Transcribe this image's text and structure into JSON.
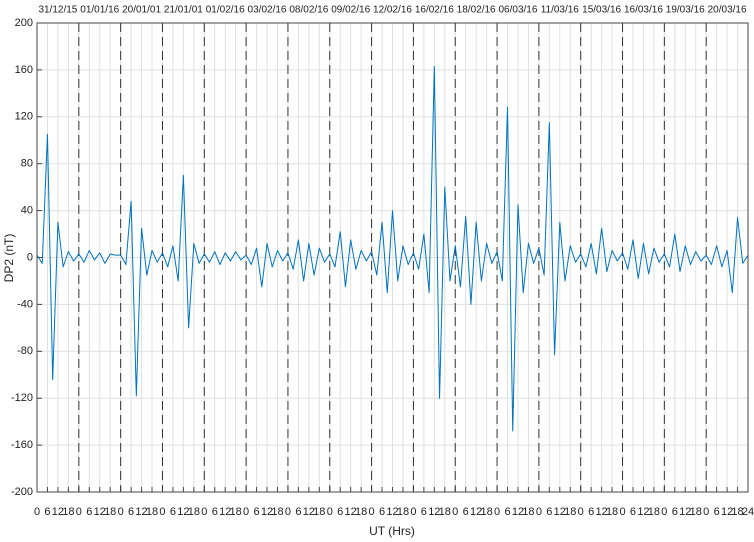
{
  "chart_data": {
    "type": "line",
    "day_labels": [
      "31/12/15",
      "01/01/16",
      "20/01/01",
      "21/01/01",
      "01/02/16",
      "03/02/16",
      "08/02/16",
      "09/02/16",
      "12/02/16",
      "16/02/16",
      "18/02/16",
      "06/03/16",
      "11/03/16",
      "15/03/16",
      "16/03/16",
      "19/03/16",
      "20/03/16"
    ],
    "xlabel": "UT (Hrs)",
    "ylabel": "DP2 (nT)",
    "xlim": [
      0,
      408
    ],
    "ylim": [
      -200,
      200
    ],
    "yticks": [
      -200,
      -160,
      -120,
      -80,
      -40,
      0,
      40,
      80,
      120,
      160,
      200
    ],
    "xticks": [
      0,
      6,
      12,
      18,
      {
        "value": 24,
        "label": "0"
      },
      {
        "value": 30,
        "label": "6"
      },
      {
        "value": 36,
        "label": "12"
      },
      {
        "value": 42,
        "label": "18"
      },
      {
        "value": 48,
        "label": "0"
      },
      {
        "value": 54,
        "label": "6"
      },
      {
        "value": 60,
        "label": "12"
      },
      {
        "value": 66,
        "label": "18"
      },
      {
        "value": 72,
        "label": "0"
      },
      {
        "value": 78,
        "label": "6"
      },
      {
        "value": 84,
        "label": "12"
      },
      {
        "value": 90,
        "label": "18"
      },
      {
        "value": 96,
        "label": "0"
      },
      {
        "value": 102,
        "label": "6"
      },
      {
        "value": 108,
        "label": "12"
      },
      {
        "value": 114,
        "label": "18"
      },
      {
        "value": 120,
        "label": "0"
      },
      {
        "value": 126,
        "label": "6"
      },
      {
        "value": 132,
        "label": "12"
      },
      {
        "value": 138,
        "label": "18"
      },
      {
        "value": 144,
        "label": "0"
      },
      {
        "value": 150,
        "label": "6"
      },
      {
        "value": 156,
        "label": "12"
      },
      {
        "value": 162,
        "label": "18"
      },
      {
        "value": 168,
        "label": "0"
      },
      {
        "value": 174,
        "label": "6"
      },
      {
        "value": 180,
        "label": "12"
      },
      {
        "value": 186,
        "label": "18"
      },
      {
        "value": 192,
        "label": "0"
      },
      {
        "value": 198,
        "label": "6"
      },
      {
        "value": 204,
        "label": "12"
      },
      {
        "value": 210,
        "label": "18"
      },
      {
        "value": 216,
        "label": "0"
      },
      {
        "value": 222,
        "label": "6"
      },
      {
        "value": 228,
        "label": "12"
      },
      {
        "value": 234,
        "label": "18"
      },
      {
        "value": 240,
        "label": "0"
      },
      {
        "value": 246,
        "label": "6"
      },
      {
        "value": 252,
        "label": "12"
      },
      {
        "value": 258,
        "label": "18"
      },
      {
        "value": 264,
        "label": "0"
      },
      {
        "value": 270,
        "label": "6"
      },
      {
        "value": 276,
        "label": "12"
      },
      {
        "value": 282,
        "label": "18"
      },
      {
        "value": 288,
        "label": "0"
      },
      {
        "value": 294,
        "label": "6"
      },
      {
        "value": 300,
        "label": "12"
      },
      {
        "value": 306,
        "label": "18"
      },
      {
        "value": 312,
        "label": "0"
      },
      {
        "value": 318,
        "label": "6"
      },
      {
        "value": 324,
        "label": "12"
      },
      {
        "value": 330,
        "label": "18"
      },
      {
        "value": 336,
        "label": "0"
      },
      {
        "value": 342,
        "label": "6"
      },
      {
        "value": 348,
        "label": "12"
      },
      {
        "value": 354,
        "label": "18"
      },
      {
        "value": 360,
        "label": "0"
      },
      {
        "value": 366,
        "label": "6"
      },
      {
        "value": 372,
        "label": "12"
      },
      {
        "value": 378,
        "label": "18"
      },
      {
        "value": 384,
        "label": "0"
      },
      {
        "value": 390,
        "label": "6"
      },
      {
        "value": 396,
        "label": "12"
      },
      {
        "value": 402,
        "label": "18"
      },
      {
        "value": 408,
        "label": "24"
      }
    ],
    "grid": true,
    "x": [
      0,
      3,
      6,
      9,
      12,
      15,
      18,
      21,
      24,
      27,
      30,
      33,
      36,
      39,
      42,
      45,
      48,
      51,
      54,
      57,
      60,
      63,
      66,
      69,
      72,
      75,
      78,
      81,
      84,
      87,
      90,
      93,
      96,
      99,
      102,
      105,
      108,
      111,
      114,
      117,
      120,
      123,
      126,
      129,
      132,
      135,
      138,
      141,
      144,
      147,
      150,
      153,
      156,
      159,
      162,
      165,
      168,
      171,
      174,
      177,
      180,
      183,
      186,
      189,
      192,
      195,
      198,
      201,
      204,
      207,
      210,
      213,
      216,
      219,
      222,
      225,
      228,
      231,
      234,
      237,
      240,
      243,
      246,
      249,
      252,
      255,
      258,
      261,
      264,
      267,
      270,
      273,
      276,
      279,
      282,
      285,
      288,
      291,
      294,
      297,
      300,
      303,
      306,
      309,
      312,
      315,
      318,
      321,
      324,
      327,
      330,
      333,
      336,
      339,
      342,
      345,
      348,
      351,
      354,
      357,
      360,
      363,
      366,
      369,
      372,
      375,
      378,
      381,
      384,
      387,
      390,
      393,
      396,
      399,
      402,
      405,
      408
    ],
    "series": [
      {
        "color": "#0072bd",
        "values": [
          2,
          -5,
          105,
          -104,
          30,
          -8,
          5,
          -3,
          3,
          -4,
          6,
          -2,
          4,
          -5,
          3,
          2,
          2,
          -6,
          48,
          -118,
          25,
          -15,
          6,
          -4,
          4,
          -8,
          10,
          -20,
          70,
          -60,
          12,
          -5,
          3,
          -4,
          5,
          -6,
          4,
          -3,
          5,
          -2,
          2,
          -6,
          8,
          -25,
          12,
          -8,
          6,
          -3,
          4,
          -10,
          15,
          -20,
          12,
          -15,
          8,
          -4,
          3,
          -8,
          22,
          -25,
          15,
          -10,
          6,
          -3,
          5,
          -15,
          30,
          -30,
          40,
          -20,
          10,
          -6,
          4,
          -10,
          20,
          -30,
          163,
          -120,
          60,
          -20,
          10,
          -25,
          35,
          -40,
          30,
          -20,
          12,
          -5,
          5,
          -20,
          128,
          -148,
          45,
          -30,
          12,
          -5,
          8,
          -15,
          115,
          -83,
          30,
          -20,
          10,
          -4,
          3,
          -8,
          12,
          -14,
          25,
          -12,
          6,
          -3,
          4,
          -10,
          15,
          -18,
          12,
          -14,
          8,
          -4,
          3,
          -8,
          20,
          -12,
          10,
          -6,
          5,
          -3,
          2,
          -6,
          10,
          -8,
          6,
          -30,
          34,
          -5,
          2
        ]
      }
    ]
  }
}
